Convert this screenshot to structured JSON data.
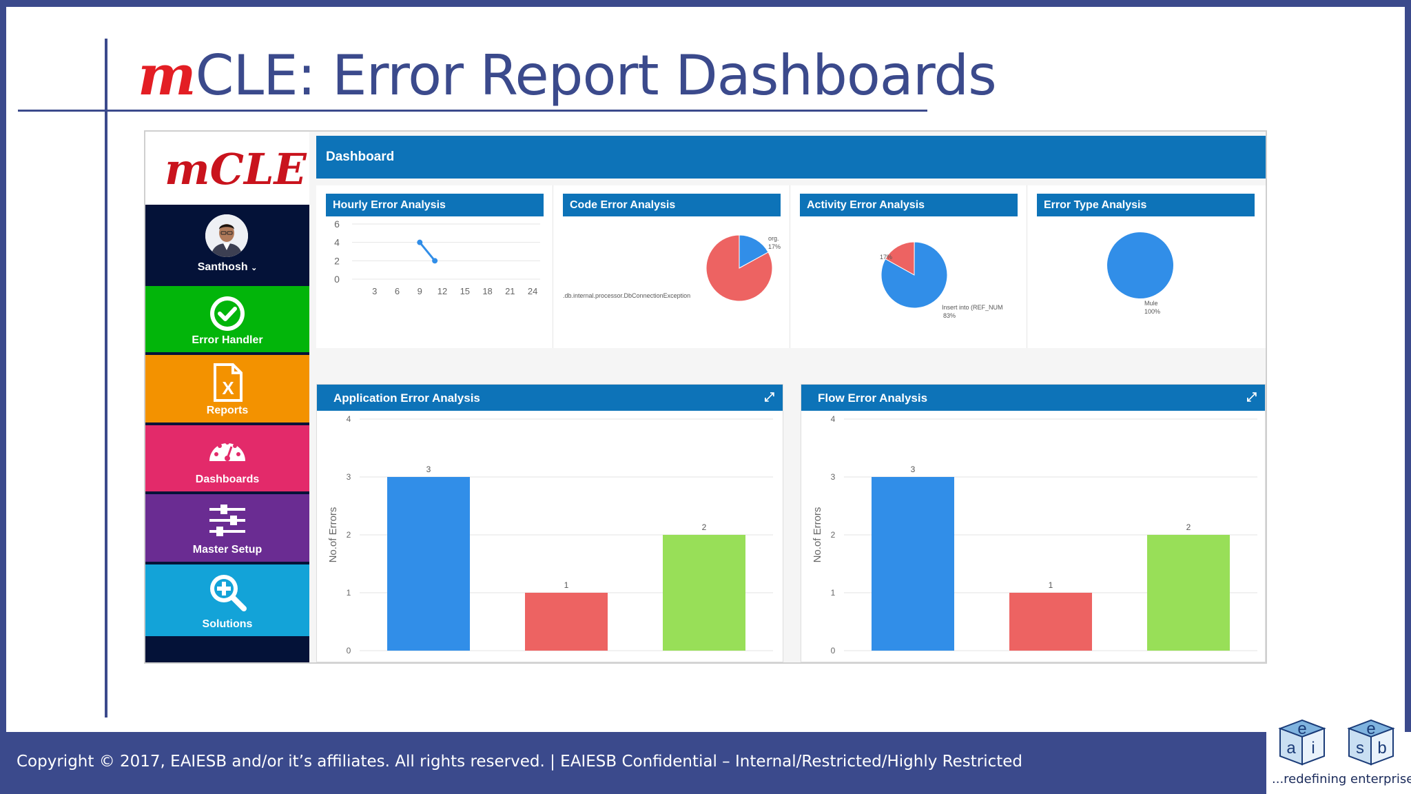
{
  "slide": {
    "title_prefix": "m",
    "title_rest": "CLE: Error Report Dashboards",
    "footer": "Copyright © 2017, EAIESB and/or it’s affiliates. All rights reserved. | EAIESB Confidential – Internal/Restricted/Highly Restricted",
    "logo_tagline": "...redefining enterprise",
    "logo_letters": [
      "e",
      "a",
      "i",
      "e",
      "s",
      "b"
    ]
  },
  "app": {
    "logo_text": "mCLE",
    "user_name": "Santhosh",
    "nav": [
      {
        "label": "Error Handler",
        "icon": "check-circle-icon",
        "color": "#02b50a"
      },
      {
        "label": "Reports",
        "icon": "excel-file-icon",
        "color": "#f39200"
      },
      {
        "label": "Dashboards",
        "icon": "gauge-icon",
        "color": "#e32a6a"
      },
      {
        "label": "Master Setup",
        "icon": "sliders-icon",
        "color": "#6a2c92"
      },
      {
        "label": "Solutions",
        "icon": "zoom-in-icon",
        "color": "#13a3d8"
      }
    ],
    "header": "Dashboard",
    "panels": {
      "hourly": "Hourly Error Analysis",
      "code": "Code Error Analysis",
      "activity": "Activity Error Analysis",
      "type": "Error Type Analysis",
      "application": "Application Error Analysis",
      "flow": "Flow Error Analysis"
    },
    "pie_labels": {
      "code_a": "org.",
      "code_a_pct": "17%",
      "code_b": ".db.internal.processor.DbConnectionException",
      "activity_a_pct": "17%",
      "activity_b": "Insert into (REF_NUM",
      "activity_b_pct": "83%",
      "type_a": "Mule",
      "type_a_pct": "100%"
    },
    "y_axis_label": "No.of Errors",
    "colors": {
      "header": "#0d73b8",
      "sidebar": "#041238",
      "blue": "#318ee8",
      "red": "#ed6362",
      "green": "#98df58"
    }
  },
  "chart_data": [
    {
      "type": "line",
      "title": "Hourly Error Analysis",
      "x": [
        9,
        11
      ],
      "y": [
        4,
        2
      ],
      "xticks": [
        3,
        6,
        9,
        12,
        15,
        18,
        21,
        24
      ],
      "yticks": [
        0,
        2,
        4,
        6
      ],
      "ylim": [
        0,
        6
      ]
    },
    {
      "type": "pie",
      "title": "Code Error Analysis",
      "slices": [
        {
          "label": "org.",
          "value": 17,
          "color": "#318ee8"
        },
        {
          "label": ".db.internal.processor.DbConnectionException",
          "value": 83,
          "color": "#ed6362"
        }
      ]
    },
    {
      "type": "pie",
      "title": "Activity Error Analysis",
      "slices": [
        {
          "label": "",
          "value": 17,
          "color": "#ed6362"
        },
        {
          "label": "Insert into (REF_NUM",
          "value": 83,
          "color": "#318ee8"
        }
      ]
    },
    {
      "type": "pie",
      "title": "Error Type Analysis",
      "slices": [
        {
          "label": "Mule",
          "value": 100,
          "color": "#318ee8"
        }
      ]
    },
    {
      "type": "bar",
      "title": "Application Error Analysis",
      "ylabel": "No.of Errors",
      "values": [
        3,
        1,
        2
      ],
      "colors": [
        "#318ee8",
        "#ed6362",
        "#98df58"
      ],
      "ylim": [
        0,
        4
      ],
      "yticks": [
        0,
        1,
        2,
        3,
        4
      ]
    },
    {
      "type": "bar",
      "title": "Flow Error Analysis",
      "ylabel": "No.of Errors",
      "values": [
        3,
        1,
        2
      ],
      "colors": [
        "#318ee8",
        "#ed6362",
        "#98df58"
      ],
      "ylim": [
        0,
        4
      ],
      "yticks": [
        0,
        1,
        2,
        3,
        4
      ]
    }
  ]
}
